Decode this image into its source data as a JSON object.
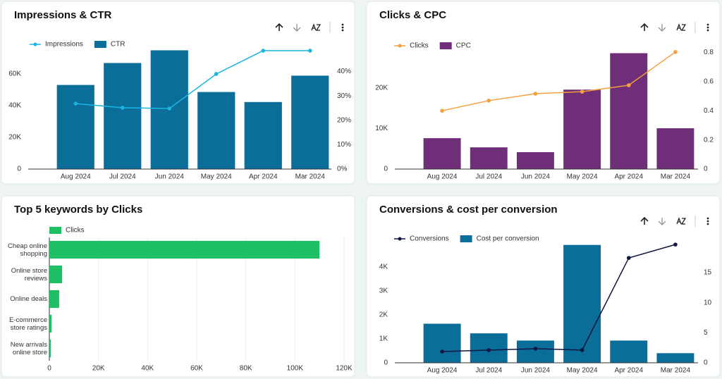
{
  "chart_data": [
    {
      "type": "combo",
      "title": "Impressions & CTR",
      "categories": [
        "Aug 2024",
        "Jul 2024",
        "Jun 2024",
        "May 2024",
        "Apr 2024",
        "Mar 2024"
      ],
      "series": [
        {
          "name": "Impressions",
          "type": "line",
          "color": "#1ab4e0",
          "values": [
            41300,
            38700,
            38200,
            60000,
            74700,
            74700
          ]
        },
        {
          "name": "CTR",
          "type": "bar",
          "axis": "y2",
          "color": "#0b6e99",
          "values": [
            34.5,
            43.5,
            48.7,
            31.6,
            27.5,
            38.3
          ]
        }
      ],
      "ylim": [
        0,
        80000
      ],
      "yticks": [
        0,
        {
          "value": 20000,
          "label": "20K"
        },
        {
          "value": 40000,
          "label": "40K"
        },
        {
          "value": 60000,
          "label": "60K"
        }
      ],
      "y2lim": [
        0,
        52
      ],
      "y2ticks": [
        {
          "value": 0,
          "label": "0%"
        },
        {
          "value": 10,
          "label": "10%"
        },
        {
          "value": 20,
          "label": "20%"
        },
        {
          "value": 30,
          "label": "30%"
        },
        {
          "value": 40,
          "label": "40%"
        }
      ]
    },
    {
      "type": "combo",
      "title": "Clicks & CPC",
      "categories": [
        "Aug 2024",
        "Jul 2024",
        "Jun 2024",
        "May 2024",
        "Apr 2024",
        "Mar 2024"
      ],
      "series": [
        {
          "name": "Clicks",
          "type": "line",
          "color": "#f4a03c",
          "values": [
            14400,
            16900,
            18600,
            19100,
            20700,
            28900
          ]
        },
        {
          "name": "CPC",
          "type": "bar",
          "axis": "y2",
          "color": "#6f2e78",
          "values": [
            0.212,
            0.149,
            0.116,
            0.545,
            0.795,
            0.28
          ]
        }
      ],
      "ylim": [
        0,
        31300
      ],
      "yticks": [
        0,
        {
          "value": 10000,
          "label": "10K"
        },
        {
          "value": 20000,
          "label": "20K"
        }
      ],
      "y2lim": [
        0,
        0.87
      ],
      "y2ticks": [
        0,
        0.2,
        0.4,
        0.6,
        0.8
      ]
    },
    {
      "type": "bar",
      "orientation": "horizontal",
      "title": "Top 5 keywords by Clicks",
      "categories": [
        "Cheap online shopping",
        "Online store reviews",
        "Online deals",
        "E-commerce store ratings",
        "New arrivals online store"
      ],
      "series": [
        {
          "name": "Clicks",
          "color": "#1fbf65",
          "values": [
            110000,
            5200,
            4000,
            900,
            600
          ]
        }
      ],
      "xlim": [
        0,
        120000
      ],
      "xticks": [
        0,
        {
          "value": 20000,
          "label": "20K"
        },
        {
          "value": 40000,
          "label": "40K"
        },
        {
          "value": 60000,
          "label": "60K"
        },
        {
          "value": 80000,
          "label": "80K"
        },
        {
          "value": 100000,
          "label": "100K"
        },
        {
          "value": 120000,
          "label": "120K"
        }
      ],
      "grid": true
    },
    {
      "type": "combo",
      "title": "Conversions & cost per conversion",
      "categories": [
        "Aug 2024",
        "Jul 2024",
        "Jun 2024",
        "May 2024",
        "Apr 2024",
        "Mar 2024"
      ],
      "series": [
        {
          "name": "Conversions",
          "type": "line",
          "color": "#10163f",
          "values": [
            470,
            530,
            590,
            530,
            4380,
            4940
          ]
        },
        {
          "name": "Cost per conversion",
          "type": "bar",
          "axis": "y2",
          "color": "#0b6e99",
          "values": [
            6.5,
            4.9,
            3.7,
            19.6,
            3.7,
            1.6
          ]
        }
      ],
      "ylim": [
        0,
        5150
      ],
      "yticks": [
        0,
        {
          "value": 1000,
          "label": "1K"
        },
        {
          "value": 2000,
          "label": "2K"
        },
        {
          "value": 3000,
          "label": "3K"
        },
        {
          "value": 4000,
          "label": "4K"
        }
      ],
      "y2lim": [
        0,
        20.5
      ],
      "y2ticks": [
        0,
        5,
        10,
        15
      ]
    }
  ]
}
